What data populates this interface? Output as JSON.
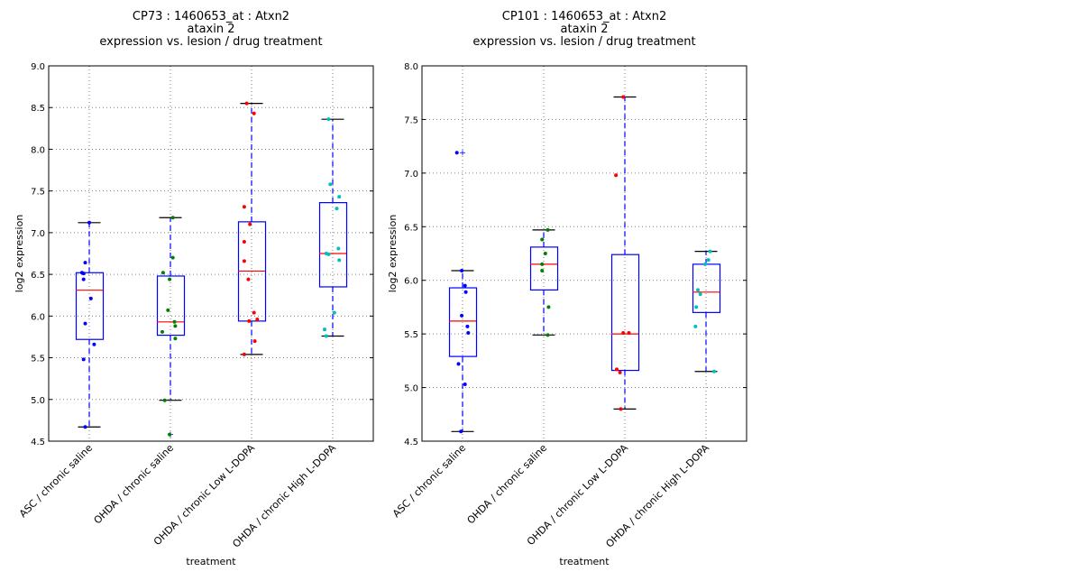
{
  "chart_data": [
    {
      "type": "box",
      "title": [
        "CP73 : 1460653_at : Atxn2",
        "ataxin 2",
        "expression vs. lesion / drug treatment"
      ],
      "xlabel": "treatment",
      "ylabel": "log2 expression",
      "ylim": [
        4.5,
        9.0
      ],
      "yticks": [
        "4.5",
        "5.0",
        "5.5",
        "6.0",
        "6.5",
        "7.0",
        "7.5",
        "8.0",
        "8.5",
        "9.0"
      ],
      "ytick_values": [
        4.5,
        5.0,
        5.5,
        6.0,
        6.5,
        7.0,
        7.5,
        8.0,
        8.5,
        9.0
      ],
      "grid": true,
      "categories": [
        "ASC / chronic saline",
        "OHDA / chronic saline",
        "OHDA / chronic Low L-DOPA",
        "OHDA / chronic High L-DOPA"
      ],
      "groups": [
        {
          "name": "ASC / chronic saline",
          "color": "#0000ff",
          "box": {
            "q1": 5.72,
            "median": 6.31,
            "q3": 6.52,
            "whisker_low": 4.67,
            "whisker_high": 7.12
          },
          "outliers": [],
          "points": [
            {
              "v": 7.12,
              "j": 0.0
            },
            {
              "v": 6.64,
              "j": -0.05
            },
            {
              "v": 6.52,
              "j": -0.09
            },
            {
              "v": 6.51,
              "j": -0.07
            },
            {
              "v": 6.44,
              "j": -0.07
            },
            {
              "v": 6.21,
              "j": 0.02
            },
            {
              "v": 5.91,
              "j": -0.05
            },
            {
              "v": 5.66,
              "j": 0.06
            },
            {
              "v": 5.48,
              "j": -0.07
            },
            {
              "v": 4.67,
              "j": -0.05
            }
          ]
        },
        {
          "name": "OHDA / chronic saline",
          "color": "#008000",
          "box": {
            "q1": 5.77,
            "median": 5.93,
            "q3": 6.48,
            "whisker_low": 4.99,
            "whisker_high": 7.18
          },
          "outliers": [
            4.58
          ],
          "points": [
            {
              "v": 7.18,
              "j": 0.03
            },
            {
              "v": 6.7,
              "j": 0.03
            },
            {
              "v": 6.52,
              "j": -0.09
            },
            {
              "v": 6.44,
              "j": -0.01
            },
            {
              "v": 6.07,
              "j": -0.03
            },
            {
              "v": 5.93,
              "j": 0.05
            },
            {
              "v": 5.88,
              "j": 0.06
            },
            {
              "v": 5.81,
              "j": -0.1
            },
            {
              "v": 5.73,
              "j": 0.06
            },
            {
              "v": 4.99,
              "j": -0.07
            },
            {
              "v": 4.58,
              "j": -0.01
            }
          ]
        },
        {
          "name": "OHDA / chronic Low L-DOPA",
          "color": "#ff0000",
          "box": {
            "q1": 5.94,
            "median": 6.54,
            "q3": 7.13,
            "whisker_low": 5.54,
            "whisker_high": 8.55
          },
          "outliers": [],
          "points": [
            {
              "v": 8.55,
              "j": -0.06
            },
            {
              "v": 8.43,
              "j": 0.03
            },
            {
              "v": 7.31,
              "j": -0.09
            },
            {
              "v": 7.1,
              "j": -0.02
            },
            {
              "v": 6.89,
              "j": -0.09
            },
            {
              "v": 6.66,
              "j": -0.09
            },
            {
              "v": 6.44,
              "j": -0.04
            },
            {
              "v": 6.04,
              "j": 0.03
            },
            {
              "v": 5.96,
              "j": 0.07
            },
            {
              "v": 5.94,
              "j": -0.03
            },
            {
              "v": 5.7,
              "j": 0.04
            },
            {
              "v": 5.54,
              "j": -0.09
            }
          ]
        },
        {
          "name": "OHDA / chronic High L-DOPA",
          "color": "#00bfbf",
          "box": {
            "q1": 6.35,
            "median": 6.75,
            "q3": 7.36,
            "whisker_low": 5.76,
            "whisker_high": 8.36
          },
          "outliers": [],
          "points": [
            {
              "v": 8.36,
              "j": -0.05
            },
            {
              "v": 7.58,
              "j": -0.03
            },
            {
              "v": 7.43,
              "j": 0.08
            },
            {
              "v": 7.29,
              "j": 0.05
            },
            {
              "v": 6.81,
              "j": 0.07
            },
            {
              "v": 6.75,
              "j": -0.08
            },
            {
              "v": 6.74,
              "j": -0.05
            },
            {
              "v": 6.67,
              "j": 0.08
            },
            {
              "v": 6.04,
              "j": 0.02
            },
            {
              "v": 5.84,
              "j": -0.1
            },
            {
              "v": 5.76,
              "j": -0.08
            }
          ]
        }
      ]
    },
    {
      "type": "box",
      "title": [
        "CP101 : 1460653_at : Atxn2",
        "ataxin 2",
        "expression vs. lesion / drug treatment"
      ],
      "xlabel": "treatment",
      "ylabel": "log2 expression",
      "ylim": [
        4.5,
        8.0
      ],
      "yticks": [
        "4.5",
        "5.0",
        "5.5",
        "6.0",
        "6.5",
        "7.0",
        "7.5",
        "8.0"
      ],
      "ytick_values": [
        4.5,
        5.0,
        5.5,
        6.0,
        6.5,
        7.0,
        7.5,
        8.0
      ],
      "grid": true,
      "categories": [
        "ASC / chronic saline",
        "OHDA / chronic saline",
        "OHDA / chronic Low L-DOPA",
        "OHDA / chronic High L-DOPA"
      ],
      "groups": [
        {
          "name": "ASC / chronic saline",
          "color": "#0000ff",
          "box": {
            "q1": 5.29,
            "median": 5.62,
            "q3": 5.93,
            "whisker_low": 4.59,
            "whisker_high": 6.09
          },
          "outliers": [
            7.19
          ],
          "points": [
            {
              "v": 7.19,
              "j": -0.07
            },
            {
              "v": 6.09,
              "j": -0.01
            },
            {
              "v": 5.95,
              "j": 0.03
            },
            {
              "v": 5.89,
              "j": 0.04
            },
            {
              "v": 5.67,
              "j": -0.01
            },
            {
              "v": 5.57,
              "j": 0.06
            },
            {
              "v": 5.51,
              "j": 0.07
            },
            {
              "v": 5.22,
              "j": -0.05
            },
            {
              "v": 5.03,
              "j": 0.03
            },
            {
              "v": 4.59,
              "j": -0.02
            }
          ]
        },
        {
          "name": "OHDA / chronic saline",
          "color": "#008000",
          "box": {
            "q1": 5.91,
            "median": 6.15,
            "q3": 6.31,
            "whisker_low": 5.49,
            "whisker_high": 6.47
          },
          "outliers": [],
          "points": [
            {
              "v": 6.47,
              "j": 0.05
            },
            {
              "v": 6.38,
              "j": -0.02
            },
            {
              "v": 6.25,
              "j": 0.02
            },
            {
              "v": 6.15,
              "j": -0.02
            },
            {
              "v": 6.09,
              "j": -0.02
            },
            {
              "v": 5.75,
              "j": 0.06
            },
            {
              "v": 5.49,
              "j": 0.05
            }
          ]
        },
        {
          "name": "OHDA / chronic Low L-DOPA",
          "color": "#ff0000",
          "box": {
            "q1": 5.16,
            "median": 5.5,
            "q3": 6.24,
            "whisker_low": 4.8,
            "whisker_high": 7.71
          },
          "outliers": [],
          "points": [
            {
              "v": 7.71,
              "j": -0.02
            },
            {
              "v": 6.98,
              "j": -0.11
            },
            {
              "v": 5.51,
              "j": -0.02
            },
            {
              "v": 5.51,
              "j": 0.05
            },
            {
              "v": 5.17,
              "j": -0.1
            },
            {
              "v": 5.14,
              "j": -0.06
            },
            {
              "v": 4.8,
              "j": -0.05
            }
          ]
        },
        {
          "name": "OHDA / chronic High L-DOPA",
          "color": "#00bfbf",
          "box": {
            "q1": 5.7,
            "median": 5.89,
            "q3": 6.15,
            "whisker_low": 5.15,
            "whisker_high": 6.27
          },
          "outliers": [],
          "points": [
            {
              "v": 6.27,
              "j": 0.05
            },
            {
              "v": 6.19,
              "j": 0.03
            },
            {
              "v": 6.15,
              "j": -0.01
            },
            {
              "v": 5.91,
              "j": -0.1
            },
            {
              "v": 5.87,
              "j": -0.07
            },
            {
              "v": 5.75,
              "j": -0.12
            },
            {
              "v": 5.57,
              "j": -0.13
            },
            {
              "v": 5.15,
              "j": 0.1
            }
          ]
        }
      ]
    }
  ],
  "style": {
    "box_color": "#0000ff",
    "median_color": "#ff0000",
    "cap_color": "#000000",
    "grid_color": "#808080",
    "axis_color": "#000000"
  }
}
